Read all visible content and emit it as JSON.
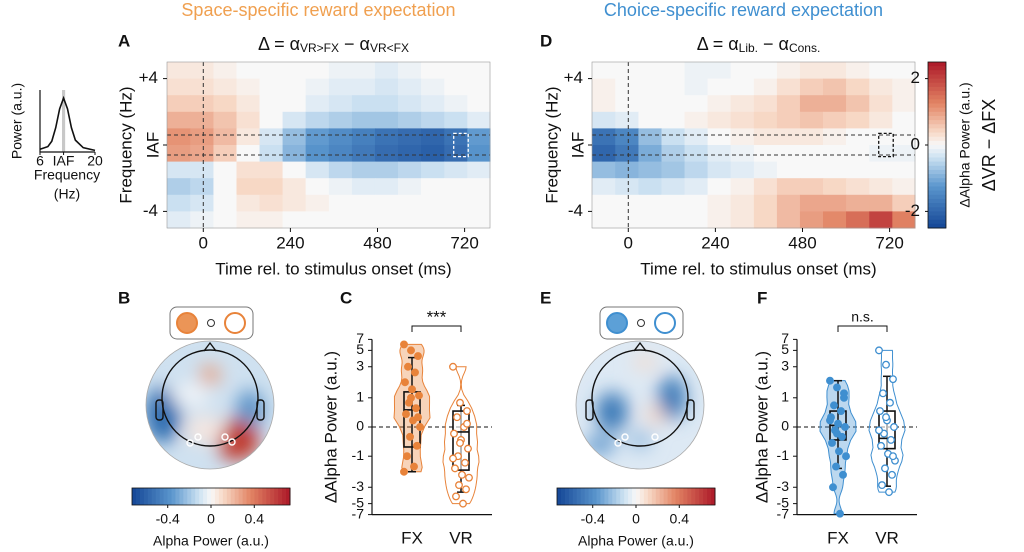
{
  "chart_data": [
    {
      "type": "spectrum",
      "ylabel": "Power (a.u.)",
      "xlabel_lines": [
        "Frequency",
        "(Hz)"
      ],
      "x": [
        6,
        8,
        9,
        10,
        11,
        12,
        13,
        14,
        15,
        17,
        20
      ],
      "values": [
        0.05,
        0.1,
        0.2,
        0.45,
        0.8,
        1.0,
        0.8,
        0.45,
        0.22,
        0.08,
        0.03
      ],
      "xlim": [
        6,
        20
      ],
      "ylim": [
        0,
        1.15
      ],
      "xticks": [
        6,
        {
          "value": 12,
          "label": "IAF"
        },
        20
      ],
      "band": [
        11.6,
        12.4
      ],
      "color": "#111111",
      "band_color": "#c8c8c8"
    },
    {
      "type": "heatmap",
      "panel": "A",
      "heading": "Space-specific reward expectation",
      "heading_color": "#f0a050",
      "title_parts": [
        {
          "text": "Δ = α"
        },
        {
          "text": "VR>FX",
          "sub": true
        },
        {
          "text": " − α"
        },
        {
          "text": "VR<FX",
          "sub": true
        }
      ],
      "xlabel": "Time rel. to stimulus onset (ms)",
      "ylabel": "Frequency (Hz)",
      "xlim": [
        -100,
        790
      ],
      "ylim": [
        -5,
        5
      ],
      "xticks": [
        0,
        240,
        480,
        720
      ],
      "yticks": [
        {
          "value": 4,
          "label": "+4"
        },
        {
          "value": 0,
          "label": "IAF"
        },
        {
          "value": -4,
          "label": "-4"
        }
      ],
      "vline": 0,
      "hlines": [
        -0.6,
        0.6
      ],
      "roi": {
        "x": [
          690,
          730
        ],
        "y": [
          -0.7,
          0.7
        ],
        "color": "#ffffff"
      },
      "x": [
        -68,
        -4,
        60,
        123,
        187,
        250,
        314,
        378,
        441,
        505,
        568,
        632,
        696,
        759
      ],
      "y": [
        4.5,
        3.5,
        2.5,
        1.5,
        0.5,
        -0.5,
        -1.5,
        -2.5,
        -3.5,
        -4.5
      ],
      "z": [
        [
          0.2,
          0.2,
          0.1,
          0,
          0,
          0,
          0,
          -0.1,
          -0.1,
          -0.2,
          -0.1,
          0,
          0,
          0
        ],
        [
          0.3,
          0.3,
          0.2,
          0.1,
          0,
          0,
          -0.1,
          -0.2,
          -0.2,
          -0.3,
          -0.2,
          -0.1,
          0,
          0
        ],
        [
          0.5,
          0.5,
          0.4,
          0.2,
          0,
          0,
          -0.2,
          -0.3,
          -0.4,
          -0.4,
          -0.3,
          -0.2,
          -0.1,
          0
        ],
        [
          0.8,
          0.8,
          0.6,
          0.3,
          0,
          -0.3,
          -0.5,
          -0.6,
          -0.7,
          -0.7,
          -0.6,
          -0.5,
          -0.4,
          -0.2
        ],
        [
          1.1,
          1.0,
          0.7,
          0.2,
          -0.3,
          -0.8,
          -1.2,
          -1.4,
          -1.6,
          -1.8,
          -1.9,
          -2.0,
          -1.8,
          -1.2
        ],
        [
          1.0,
          0.9,
          0.5,
          0,
          -0.4,
          -0.9,
          -1.3,
          -1.5,
          -1.7,
          -1.9,
          -2.0,
          -2.1,
          -1.9,
          -1.3
        ],
        [
          -0.3,
          -0.3,
          0,
          0.3,
          0.3,
          0,
          -0.3,
          -0.5,
          -0.6,
          -0.6,
          -0.5,
          -0.4,
          -0.3,
          -0.2
        ],
        [
          -0.6,
          -0.5,
          0,
          0.4,
          0.4,
          0.2,
          0,
          -0.1,
          -0.2,
          -0.2,
          -0.1,
          0,
          0,
          0
        ],
        [
          -0.4,
          -0.3,
          0,
          0.2,
          0.3,
          0.2,
          0.1,
          0,
          0,
          0,
          0,
          0,
          0,
          0
        ],
        [
          -0.2,
          -0.1,
          0,
          0.1,
          0.1,
          0,
          0,
          0,
          0,
          0,
          0,
          0,
          0,
          0
        ]
      ]
    },
    {
      "type": "heatmap",
      "panel": "D",
      "heading": "Choice-specific reward expectation",
      "heading_color": "#3f8fd0",
      "title_parts": [
        {
          "text": "Δ = α"
        },
        {
          "text": "Lib.",
          "sub": true
        },
        {
          "text": " − α"
        },
        {
          "text": "Cons.",
          "sub": true
        }
      ],
      "xlabel": "Time rel. to stimulus onset (ms)",
      "ylabel": "Frequency (Hz)",
      "xlim": [
        -100,
        790
      ],
      "ylim": [
        -5,
        5
      ],
      "xticks": [
        0,
        240,
        480,
        720
      ],
      "yticks": [
        {
          "value": 4,
          "label": "+4"
        },
        {
          "value": 0,
          "label": "IAF"
        },
        {
          "value": -4,
          "label": "-4"
        }
      ],
      "vline": 0,
      "hlines": [
        -0.6,
        0.6
      ],
      "roi": {
        "x": [
          690,
          730
        ],
        "y": [
          -0.7,
          0.7
        ],
        "color": "#111111"
      },
      "x": [
        -68,
        -4,
        60,
        123,
        187,
        250,
        314,
        378,
        441,
        505,
        568,
        632,
        696,
        759
      ],
      "y": [
        4.5,
        3.5,
        2.5,
        1.5,
        0.5,
        -0.5,
        -1.5,
        -2.5,
        -3.5,
        -4.5
      ],
      "z": [
        [
          0,
          0,
          0,
          0,
          -0.1,
          -0.1,
          0,
          0,
          0.1,
          0.2,
          0.2,
          0.1,
          0,
          0
        ],
        [
          0.1,
          0,
          0,
          0,
          -0.1,
          0,
          0,
          0.1,
          0.3,
          0.5,
          0.6,
          0.4,
          0.2,
          0.1
        ],
        [
          0.1,
          0,
          0,
          0,
          0,
          0.1,
          0.2,
          0.3,
          0.5,
          0.8,
          0.8,
          0.6,
          0.3,
          0.1
        ],
        [
          -0.3,
          -0.2,
          0,
          0,
          0.1,
          0.2,
          0.3,
          0.4,
          0.5,
          0.6,
          0.5,
          0.4,
          0.2,
          0
        ],
        [
          -1.8,
          -1.5,
          -0.8,
          -0.4,
          -0.2,
          0,
          0.1,
          0.2,
          0.2,
          0.2,
          0.1,
          0,
          0,
          0
        ],
        [
          -2.0,
          -1.7,
          -1.0,
          -0.6,
          -0.4,
          -0.2,
          -0.1,
          0,
          0,
          0,
          0,
          0,
          -0.1,
          -0.1
        ],
        [
          -0.8,
          -0.9,
          -0.8,
          -0.7,
          -0.5,
          -0.3,
          -0.2,
          -0.1,
          0,
          0,
          0,
          0,
          0,
          0
        ],
        [
          -0.2,
          -0.3,
          -0.4,
          -0.3,
          -0.2,
          0,
          0.1,
          0.3,
          0.5,
          0.5,
          0.4,
          0.3,
          0.2,
          0.1
        ],
        [
          0,
          0,
          0,
          0,
          0,
          0.1,
          0.2,
          0.4,
          0.7,
          0.9,
          0.9,
          0.8,
          0.8,
          0.5
        ],
        [
          0,
          0,
          0,
          0,
          0,
          0.1,
          0.2,
          0.4,
          0.7,
          1.0,
          1.2,
          1.5,
          2.0,
          1.3
        ]
      ]
    },
    {
      "type": "colorbar",
      "ylim": [
        -2.5,
        2.5
      ],
      "yticks": [
        -2,
        0,
        2
      ],
      "ylabel": "ΔAlpha Power (a.u.)",
      "ylabel2": "ΔVR − ΔFX"
    },
    {
      "type": "topomap",
      "panel": "B",
      "xlabel": "Alpha Power (a.u.)",
      "xlim": [
        -0.73,
        0.73
      ],
      "xticks": [
        -0.4,
        0,
        0.4
      ],
      "color": "#e8833a"
    },
    {
      "type": "box",
      "panel": "C",
      "ylabel": "ΔAlpha Power (a.u.)",
      "categories": [
        "FX",
        "VR"
      ],
      "scale": "asinh",
      "ylim": [
        -8,
        8
      ],
      "yticks": [
        -7,
        -5,
        -3,
        -1,
        0,
        1,
        3,
        5,
        7
      ],
      "hline": 0,
      "annotation": "***",
      "color": "#e8833a",
      "boxes": [
        {
          "q1": -0.64,
          "median": 0.54,
          "q3": 1.27,
          "whisker_low": -1.8,
          "whisker_high": 4.0
        },
        {
          "q1": -1.7,
          "median": -0.15,
          "q3": 0.5,
          "whisker_low": -3.5,
          "whisker_high": 0.7
        }
      ],
      "points": [
        [
          6.0,
          5.0,
          4.2,
          3.0,
          2.5,
          1.8,
          1.4,
          1.1,
          0.8,
          0.6,
          0.4,
          0.2,
          0,
          -0.3,
          -0.6,
          -1.0,
          -1.5,
          -1.8,
          1.0,
          0.3
        ],
        [
          3.0,
          0.8,
          0.5,
          0.3,
          0,
          -0.2,
          -0.4,
          -0.7,
          -1.0,
          -1.3,
          -1.6,
          -2.0,
          -2.2,
          -2.8,
          -3.2,
          -4.0,
          -5.0,
          -1.1,
          -0.5,
          0.1
        ]
      ]
    },
    {
      "type": "topomap",
      "panel": "E",
      "xlabel": "Alpha Power (a.u.)",
      "xlim": [
        -0.73,
        0.73
      ],
      "xticks": [
        -0.4,
        0,
        0.4
      ],
      "color": "#3f8fd0"
    },
    {
      "type": "box",
      "panel": "F",
      "ylabel": "ΔAlpha Power (a.u.)",
      "categories": [
        "FX",
        "VR"
      ],
      "scale": "asinh",
      "ylim": [
        -8,
        8
      ],
      "yticks": [
        -7,
        -5,
        -3,
        -1,
        0,
        1,
        3,
        5,
        7
      ],
      "hline": 0,
      "annotation": "n.s.",
      "color": "#3f8fd0",
      "boxes": [
        {
          "q1": -0.4,
          "median": 0.05,
          "q3": 0.5,
          "whisker_low": -1.6,
          "whisker_high": 1.9
        },
        {
          "q1": -0.7,
          "median": -0.35,
          "q3": 0.5,
          "whisker_low": -2.9,
          "whisker_high": 2.2
        }
      ],
      "points": [
        [
          1.9,
          1.5,
          1.0,
          0.7,
          0.5,
          0.3,
          0.1,
          0,
          -0.1,
          -0.3,
          -0.5,
          -0.8,
          -1.0,
          -1.5,
          -2.0,
          -3.0,
          -6.8,
          0.2,
          -0.2,
          1.2
        ],
        [
          5.0,
          3.2,
          2.0,
          1.2,
          0.8,
          0.5,
          0.2,
          0,
          -0.2,
          -0.4,
          -0.6,
          -0.9,
          -1.2,
          -1.6,
          -2.0,
          -2.8,
          -3.5,
          -0.1,
          0.3,
          -1.0
        ]
      ]
    }
  ]
}
